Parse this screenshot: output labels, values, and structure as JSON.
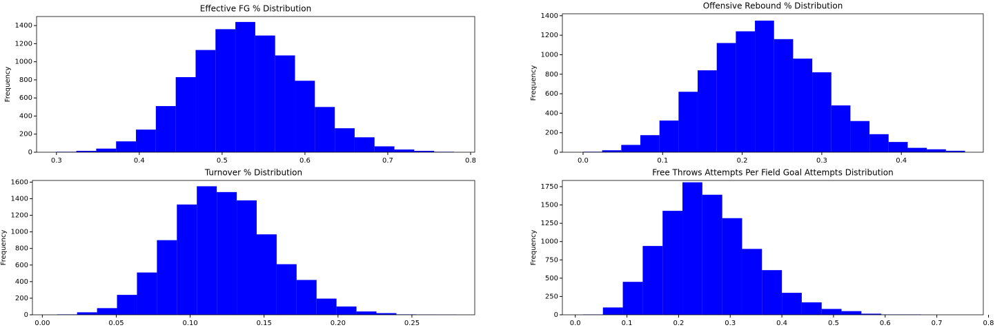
{
  "chart_data": [
    {
      "type": "histogram",
      "title": "Effective FG % Distribution",
      "y_label": "Frequency",
      "color": "#0000ff",
      "bins": [
        0.3,
        0.324,
        0.348,
        0.372,
        0.396,
        0.42,
        0.444,
        0.468,
        0.492,
        0.516,
        0.54,
        0.564,
        0.588,
        0.612,
        0.636,
        0.66,
        0.684,
        0.708,
        0.732,
        0.756,
        0.78
      ],
      "values": [
        5,
        15,
        40,
        120,
        250,
        510,
        830,
        1130,
        1360,
        1440,
        1290,
        1070,
        790,
        500,
        265,
        165,
        65,
        30,
        15,
        5
      ],
      "xlim": [
        0.276,
        0.805
      ],
      "ylim": [
        0,
        1500
      ],
      "xticks": [
        0.3,
        0.4,
        0.5,
        0.6,
        0.7,
        0.8
      ],
      "yticks": [
        0,
        200,
        400,
        600,
        800,
        1000,
        1200,
        1400
      ]
    },
    {
      "type": "histogram",
      "title": "Offensive Rebound % Distribution",
      "y_label": "Frequency",
      "color": "#0000ff",
      "bins": [
        0,
        0.024,
        0.048,
        0.072,
        0.096,
        0.12,
        0.144,
        0.168,
        0.192,
        0.216,
        0.24,
        0.264,
        0.288,
        0.312,
        0.336,
        0.36,
        0.384,
        0.408,
        0.432,
        0.456,
        0.48
      ],
      "values": [
        5,
        20,
        75,
        175,
        325,
        620,
        840,
        1120,
        1240,
        1350,
        1160,
        960,
        820,
        480,
        320,
        185,
        105,
        45,
        30,
        15
      ],
      "xlim": [
        -0.026,
        0.503
      ],
      "ylim": [
        0,
        1420
      ],
      "xticks": [
        {
          "value": 0,
          "label": "0.0"
        },
        0.1,
        0.2,
        0.3,
        0.4
      ],
      "yticks": [
        0,
        200,
        400,
        600,
        800,
        1000,
        1200,
        1400
      ]
    },
    {
      "type": "histogram",
      "title": "Turnover % Distribution",
      "y_label": "Frequency",
      "color": "#0000ff",
      "bins": [
        0.01,
        0.0235,
        0.037,
        0.0505,
        0.064,
        0.0775,
        0.091,
        0.1045,
        0.118,
        0.1315,
        0.145,
        0.1585,
        0.172,
        0.1855,
        0.199,
        0.2125,
        0.226,
        0.2395,
        0.253,
        0.2665,
        0.28
      ],
      "values": [
        5,
        30,
        80,
        240,
        510,
        900,
        1330,
        1550,
        1480,
        1380,
        970,
        610,
        420,
        195,
        100,
        40,
        20,
        5,
        3,
        2
      ],
      "xlim": [
        -0.0067,
        0.2925
      ],
      "ylim": [
        0,
        1620
      ],
      "xticks": [
        {
          "value": 0,
          "label": "0.00"
        },
        {
          "value": 0.05,
          "label": "0.05"
        },
        {
          "value": 0.1,
          "label": "0.10"
        },
        {
          "value": 0.15,
          "label": "0.15"
        },
        {
          "value": 0.2,
          "label": "0.20"
        },
        {
          "value": 0.25,
          "label": "0.25"
        }
      ],
      "yticks": [
        0,
        200,
        400,
        600,
        800,
        1000,
        1200,
        1400,
        1600
      ]
    },
    {
      "type": "histogram",
      "title": "Free Throws Attempts Per Field Goal Attempts Distribution",
      "y_label": "Frequency",
      "color": "#0000ff",
      "bins": [
        0.015,
        0.0535,
        0.092,
        0.1305,
        0.169,
        0.2075,
        0.246,
        0.2845,
        0.323,
        0.3615,
        0.4,
        0.4385,
        0.477,
        0.5155,
        0.554,
        0.5925,
        0.631,
        0.6695
      ],
      "values": [
        5,
        100,
        450,
        940,
        1420,
        1810,
        1640,
        1320,
        900,
        610,
        300,
        170,
        80,
        50,
        15,
        5,
        5
      ],
      "xlim": [
        -0.025,
        0.79
      ],
      "ylim": [
        0,
        1835
      ],
      "xticks": [
        {
          "value": 0,
          "label": "0.0"
        },
        0.1,
        0.2,
        0.3,
        0.4,
        0.5,
        0.6,
        0.7,
        0.8
      ],
      "yticks": [
        0,
        250,
        500,
        750,
        1000,
        1250,
        1500,
        1750
      ]
    }
  ]
}
